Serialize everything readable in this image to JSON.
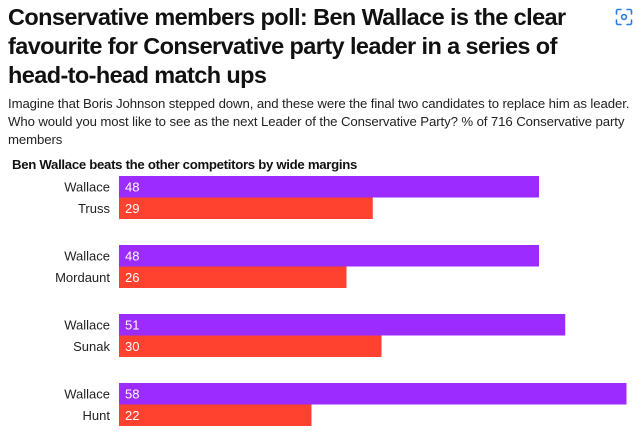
{
  "header": {
    "title": "Conservative members poll: Ben Wallace is the clear favourite for Conservative party leader in a series of head-to-head match ups",
    "subtitle": "Imagine that Boris Johnson stepped down, and these were the final two candidates to replace him as leader. Who would you most like to see as the next Leader of the Conservative Party? % of 716 Conservative party members",
    "lens_icon": "visual-search-icon"
  },
  "chart_data": {
    "type": "bar",
    "orientation": "horizontal",
    "title": "Ben Wallace beats the other competitors by wide margins",
    "xlabel": "",
    "ylabel": "",
    "unit": "%",
    "xlim": [
      0,
      58
    ],
    "grid": false,
    "legend": "none",
    "colors": {
      "Wallace": "#9B2BFF",
      "opponent": "#FF4130"
    },
    "groups": [
      {
        "bars": [
          {
            "name": "Wallace",
            "value": 48,
            "role": "Wallace"
          },
          {
            "name": "Truss",
            "value": 29,
            "role": "opponent"
          }
        ]
      },
      {
        "bars": [
          {
            "name": "Wallace",
            "value": 48,
            "role": "Wallace"
          },
          {
            "name": "Mordaunt",
            "value": 26,
            "role": "opponent"
          }
        ]
      },
      {
        "bars": [
          {
            "name": "Wallace",
            "value": 51,
            "role": "Wallace"
          },
          {
            "name": "Sunak",
            "value": 30,
            "role": "opponent"
          }
        ]
      },
      {
        "bars": [
          {
            "name": "Wallace",
            "value": 58,
            "role": "Wallace"
          },
          {
            "name": "Hunt",
            "value": 22,
            "role": "opponent"
          }
        ]
      }
    ]
  }
}
